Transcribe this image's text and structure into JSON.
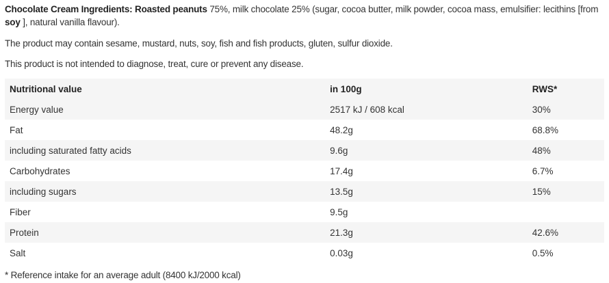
{
  "ingredients": {
    "label": "Chocolate Cream Ingredients:",
    "bold_item": "Roasted peanuts",
    "text1": " 75%, milk chocolate 25% (sugar, cocoa butter, milk powder, cocoa mass, emulsifier: lecithins [from ",
    "bold_soy": "soy",
    "text2": " ], natural vanilla flavour)."
  },
  "allergens": "The product may contain sesame, mustard, nuts, soy, fish and fish products, gluten, sulfur dioxide.",
  "disclaimer": "This product is not intended to diagnose, treat, cure or prevent any disease.",
  "table": {
    "headers": [
      "Nutritional value",
      "in 100g",
      "RWS*"
    ],
    "rows": [
      [
        "Energy value",
        "2517 kJ / 608 kcal",
        "30%"
      ],
      [
        "Fat",
        "48.2g",
        "68.8%"
      ],
      [
        "including saturated fatty acids",
        "9.6g",
        "48%"
      ],
      [
        "Carbohydrates",
        "17.4g",
        "6.7%"
      ],
      [
        "including sugars",
        "13.5g",
        "15%"
      ],
      [
        "Fiber",
        "9.5g",
        ""
      ],
      [
        "Protein",
        "21.3g",
        "42.6%"
      ],
      [
        "Salt",
        "0.03g",
        "0.5%"
      ]
    ]
  },
  "footnote": "* Reference intake for an average adult (8400 kJ/2000 kcal)"
}
